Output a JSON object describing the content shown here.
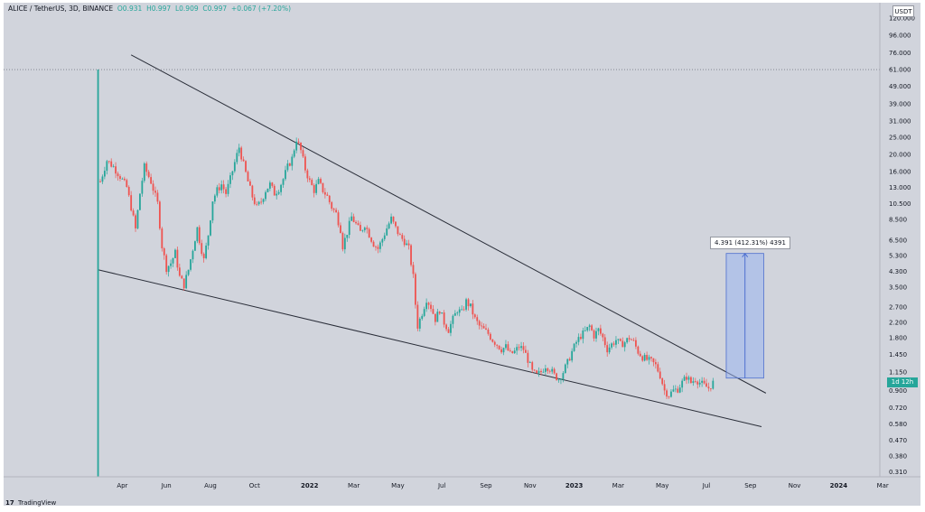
{
  "header": {
    "symbol": "ALICE / TetherUS, 3D, BINANCE",
    "open": "O0.931",
    "high": "H0.997",
    "low": "L0.909",
    "close": "C0.997",
    "change": "+0.067 (+7.20%)"
  },
  "currency": "USDT",
  "price_tag": "1d 12h",
  "measure_label": "4.391 (412.31%) 4391",
  "footer": {
    "logo_mark": "17",
    "brand": "TradingView"
  },
  "colors": {
    "background": "#d1d4dc",
    "up": "#26a69a",
    "down": "#ef5350",
    "trendline": "#2a2e39",
    "measure_fill": "#9bb5f0",
    "measure_stroke": "#4d6fcf"
  },
  "chart_data": {
    "type": "candlestick",
    "scale": "log",
    "ylim": [
      0.29,
      140
    ],
    "y_ticks": [
      "120.000",
      "96.000",
      "76.000",
      "61.000",
      "49.000",
      "39.000",
      "31.000",
      "25.000",
      "20.000",
      "16.000",
      "13.000",
      "10.500",
      "8.500",
      "6.500",
      "5.300",
      "4.300",
      "3.500",
      "2.700",
      "2.200",
      "1.800",
      "1.450",
      "1.150",
      "0.900",
      "0.720",
      "0.580",
      "0.470",
      "0.380",
      "0.310"
    ],
    "x_ticks": [
      {
        "label": "Apr",
        "t": 1.0
      },
      {
        "label": "Jun",
        "t": 3.0
      },
      {
        "label": "Aug",
        "t": 5.0
      },
      {
        "label": "Oct",
        "t": 7.0
      },
      {
        "label": "2022",
        "t": 9.5,
        "year": true
      },
      {
        "label": "Mar",
        "t": 11.5
      },
      {
        "label": "May",
        "t": 13.5
      },
      {
        "label": "Jul",
        "t": 15.5
      },
      {
        "label": "Sep",
        "t": 17.5
      },
      {
        "label": "Nov",
        "t": 19.5
      },
      {
        "label": "2023",
        "t": 21.5,
        "year": true
      },
      {
        "label": "Mar",
        "t": 23.5
      },
      {
        "label": "May",
        "t": 25.5
      },
      {
        "label": "Jul",
        "t": 27.5
      },
      {
        "label": "Sep",
        "t": 29.5
      },
      {
        "label": "Nov",
        "t": 31.5
      },
      {
        "label": "2024",
        "t": 33.5,
        "year": true
      },
      {
        "label": "Mar",
        "t": 35.5
      }
    ],
    "dotted_level": 61,
    "close_path": [
      [
        0.0,
        14.0
      ],
      [
        0.3,
        18.5
      ],
      [
        0.6,
        17.0
      ],
      [
        0.9,
        15.0
      ],
      [
        1.2,
        13.0
      ],
      [
        1.4,
        10.0
      ],
      [
        1.6,
        7.5
      ],
      [
        1.8,
        12.0
      ],
      [
        2.0,
        17.0
      ],
      [
        2.3,
        14.0
      ],
      [
        2.6,
        10.5
      ],
      [
        2.8,
        6.0
      ],
      [
        3.0,
        4.5
      ],
      [
        3.2,
        4.8
      ],
      [
        3.4,
        5.5
      ],
      [
        3.6,
        4.0
      ],
      [
        3.8,
        3.6
      ],
      [
        4.0,
        4.4
      ],
      [
        4.2,
        5.8
      ],
      [
        4.4,
        7.6
      ],
      [
        4.5,
        6.5
      ],
      [
        4.7,
        5.0
      ],
      [
        4.9,
        7.0
      ],
      [
        5.1,
        11.0
      ],
      [
        5.3,
        12.5
      ],
      [
        5.5,
        13.5
      ],
      [
        5.7,
        12.0
      ],
      [
        5.9,
        14.5
      ],
      [
        6.1,
        18.0
      ],
      [
        6.3,
        22.0
      ],
      [
        6.5,
        17.5
      ],
      [
        6.7,
        14.0
      ],
      [
        6.9,
        11.5
      ],
      [
        7.1,
        10.0
      ],
      [
        7.3,
        10.8
      ],
      [
        7.5,
        12.5
      ],
      [
        7.7,
        13.5
      ],
      [
        7.9,
        12.0
      ],
      [
        8.1,
        12.8
      ],
      [
        8.3,
        14.5
      ],
      [
        8.5,
        17.0
      ],
      [
        8.7,
        19.0
      ],
      [
        8.9,
        24.5
      ],
      [
        9.1,
        21.0
      ],
      [
        9.3,
        16.5
      ],
      [
        9.5,
        14.0
      ],
      [
        9.7,
        12.5
      ],
      [
        9.9,
        14.0
      ],
      [
        10.1,
        12.5
      ],
      [
        10.3,
        11.5
      ],
      [
        10.5,
        10.0
      ],
      [
        10.7,
        9.2
      ],
      [
        10.9,
        7.5
      ],
      [
        11.0,
        6.0
      ],
      [
        11.2,
        7.2
      ],
      [
        11.4,
        8.8
      ],
      [
        11.6,
        8.0
      ],
      [
        11.8,
        7.2
      ],
      [
        12.0,
        8.0
      ],
      [
        12.2,
        7.0
      ],
      [
        12.4,
        6.2
      ],
      [
        12.6,
        5.8
      ],
      [
        12.8,
        6.6
      ],
      [
        13.0,
        7.6
      ],
      [
        13.2,
        8.6
      ],
      [
        13.4,
        7.6
      ],
      [
        13.6,
        6.8
      ],
      [
        13.8,
        6.4
      ],
      [
        14.0,
        5.8
      ],
      [
        14.2,
        4.0
      ],
      [
        14.3,
        2.8
      ],
      [
        14.4,
        2.1
      ],
      [
        14.6,
        2.5
      ],
      [
        14.8,
        3.0
      ],
      [
        15.0,
        2.7
      ],
      [
        15.2,
        2.3
      ],
      [
        15.4,
        2.6
      ],
      [
        15.6,
        2.2
      ],
      [
        15.8,
        2.0
      ],
      [
        16.0,
        2.3
      ],
      [
        16.2,
        2.6
      ],
      [
        16.4,
        2.5
      ],
      [
        16.6,
        2.9
      ],
      [
        16.8,
        2.7
      ],
      [
        17.0,
        2.3
      ],
      [
        17.2,
        2.1
      ],
      [
        17.4,
        2.0
      ],
      [
        17.6,
        1.9
      ],
      [
        17.8,
        1.75
      ],
      [
        18.0,
        1.65
      ],
      [
        18.2,
        1.55
      ],
      [
        18.4,
        1.6
      ],
      [
        18.6,
        1.45
      ],
      [
        18.8,
        1.5
      ],
      [
        19.0,
        1.6
      ],
      [
        19.2,
        1.55
      ],
      [
        19.4,
        1.35
      ],
      [
        19.6,
        1.15
      ],
      [
        19.8,
        1.1
      ],
      [
        20.0,
        1.15
      ],
      [
        20.2,
        1.25
      ],
      [
        20.4,
        1.2
      ],
      [
        20.6,
        1.1
      ],
      [
        20.8,
        1.05
      ],
      [
        21.0,
        1.15
      ],
      [
        21.2,
        1.3
      ],
      [
        21.4,
        1.5
      ],
      [
        21.6,
        1.7
      ],
      [
        21.8,
        1.85
      ],
      [
        22.0,
        1.95
      ],
      [
        22.2,
        2.1
      ],
      [
        22.4,
        1.85
      ],
      [
        22.6,
        2.0
      ],
      [
        22.8,
        1.8
      ],
      [
        23.0,
        1.55
      ],
      [
        23.2,
        1.65
      ],
      [
        23.4,
        1.75
      ],
      [
        23.6,
        1.65
      ],
      [
        23.8,
        1.7
      ],
      [
        24.0,
        1.8
      ],
      [
        24.2,
        1.7
      ],
      [
        24.4,
        1.5
      ],
      [
        24.6,
        1.4
      ],
      [
        24.8,
        1.35
      ],
      [
        25.0,
        1.32
      ],
      [
        25.2,
        1.25
      ],
      [
        25.4,
        1.1
      ],
      [
        25.6,
        0.9
      ],
      [
        25.8,
        0.85
      ],
      [
        26.0,
        0.9
      ],
      [
        26.2,
        0.92
      ],
      [
        26.4,
        1.0
      ],
      [
        26.6,
        1.08
      ],
      [
        26.8,
        1.0
      ],
      [
        27.0,
        1.05
      ],
      [
        27.2,
        1.0
      ],
      [
        27.4,
        0.96
      ],
      [
        27.6,
        0.93
      ],
      [
        27.8,
        0.997
      ]
    ],
    "trendlines": [
      {
        "name": "upper",
        "from": [
          1.4,
          74
        ],
        "to": [
          30.2,
          0.87
        ]
      },
      {
        "name": "lower",
        "from": [
          -0.1,
          4.4
        ],
        "to": [
          30.0,
          0.56
        ]
      }
    ],
    "spike": {
      "t": -0.1,
      "low": 0.29,
      "high": 61
    },
    "measure": {
      "t_from": 28.4,
      "t_to": 30.1,
      "from": 1.06,
      "to": 5.45
    }
  }
}
